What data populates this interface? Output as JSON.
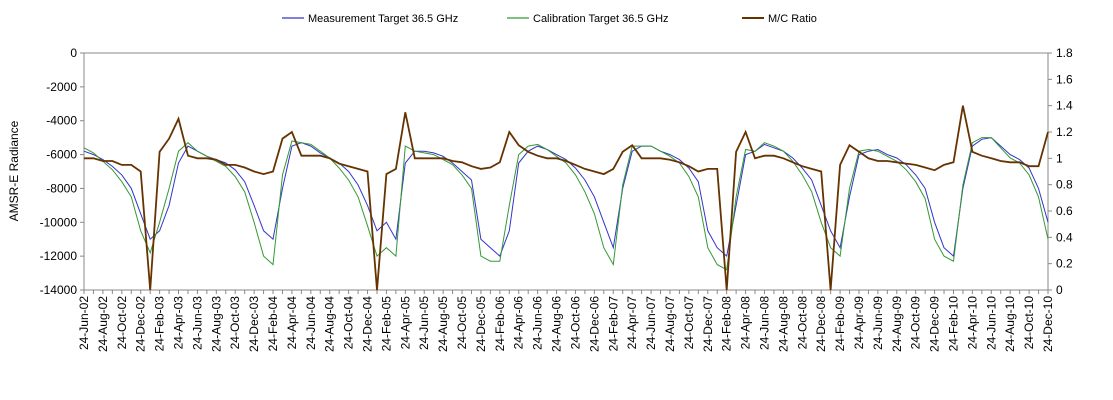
{
  "chart_data": {
    "type": "line",
    "ylabel": "AMSR-E Radiance",
    "categories": [
      "24-Jun-02",
      null,
      "24-Aug-02",
      null,
      "24-Oct-02",
      null,
      "24-Dec-02",
      null,
      "24-Feb-03",
      null,
      "24-Apr-03",
      null,
      "24-Jun-03",
      null,
      "24-Aug-03",
      null,
      "24-Oct-03",
      null,
      "24-Dec-03",
      null,
      "24-Feb-04",
      null,
      "24-Apr-04",
      null,
      "24-Jun-04",
      null,
      "24-Aug-04",
      null,
      "24-Oct-04",
      null,
      "24-Dec-04",
      null,
      "24-Feb-05",
      null,
      "24-Apr-05",
      null,
      "24-Jun-05",
      null,
      "24-Aug-05",
      null,
      "24-Oct-05",
      null,
      "24-Dec-05",
      null,
      "24-Feb-06",
      null,
      "24-Apr-06",
      null,
      "24-Jun-06",
      null,
      "24-Aug-06",
      null,
      "24-Oct-06",
      null,
      "24-Dec-06",
      null,
      "24-Feb-07",
      null,
      "24-Apr-07",
      null,
      "24-Jun-07",
      null,
      "24-Aug-07",
      null,
      "24-Oct-07",
      null,
      "24-Dec-07",
      null,
      "24-Feb-08",
      null,
      "24-Apr-08",
      null,
      "24-Jun-08",
      null,
      "24-Aug-08",
      null,
      "24-Oct-08",
      null,
      "24-Dec-08",
      null,
      "24-Feb-09",
      null,
      "24-Apr-09",
      null,
      "24-Jun-09",
      null,
      "24-Aug-09",
      null,
      "24-Oct-09",
      null,
      "24-Dec-09",
      null,
      "24-Feb-10",
      null,
      "24-Apr-10",
      null,
      "24-Jun-10",
      null,
      "24-Aug-10",
      null,
      "24-Oct-10",
      null,
      "24-Dec-10"
    ],
    "series": [
      {
        "name": "Measurement Target 36.5 GHz",
        "color": "#3333cc",
        "values": [
          -5800,
          -6000,
          -6300,
          -6700,
          -7200,
          -8000,
          -9500,
          -11000,
          -10500,
          -9000,
          -6500,
          -5500,
          -5800,
          -6100,
          -6300,
          -6500,
          -6900,
          -7600,
          -9000,
          -10500,
          -11000,
          -8000,
          -5500,
          -5300,
          -5500,
          -5900,
          -6200,
          -6500,
          -7000,
          -7800,
          -9000,
          -10500,
          -10000,
          -11000,
          -6500,
          -5800,
          -5800,
          -5900,
          -6100,
          -6500,
          -7000,
          -7500,
          -11000,
          -11500,
          -12000,
          -10500,
          -6500,
          -5800,
          -5500,
          -5700,
          -6000,
          -6300,
          -6800,
          -7500,
          -8500,
          -10000,
          -11500,
          -8000,
          -5800,
          -5500,
          -5500,
          -5800,
          -6000,
          -6300,
          -6800,
          -7600,
          -10500,
          -11500,
          -12000,
          -9000,
          -6000,
          -5800,
          -5400,
          -5600,
          -5800,
          -6200,
          -6800,
          -7500,
          -9000,
          -10500,
          -11500,
          -8500,
          -6000,
          -5800,
          -5700,
          -6000,
          -6200,
          -6600,
          -7200,
          -8000,
          -10000,
          -11500,
          -12000,
          -8000,
          -5500,
          -5100,
          -5000,
          -5500,
          -6000,
          -6300,
          -6800,
          -8000,
          -10000
        ]
      },
      {
        "name": "Calibration Target 36.5 GHz",
        "color": "#339933",
        "values": [
          -5600,
          -5900,
          -6400,
          -6900,
          -7600,
          -8500,
          -10500,
          -11800,
          -10000,
          -8000,
          -5800,
          -5300,
          -5800,
          -6100,
          -6400,
          -6700,
          -7300,
          -8200,
          -10000,
          -12000,
          -12500,
          -7200,
          -5200,
          -5300,
          -5400,
          -5800,
          -6200,
          -6800,
          -7500,
          -8500,
          -10200,
          -12000,
          -11500,
          -12000,
          -5500,
          -5800,
          -5900,
          -6000,
          -6300,
          -6600,
          -7200,
          -8000,
          -12000,
          -12300,
          -12300,
          -9000,
          -6000,
          -5500,
          -5400,
          -5700,
          -6100,
          -6500,
          -7200,
          -8200,
          -9500,
          -11500,
          -12500,
          -7800,
          -5500,
          -5500,
          -5500,
          -5800,
          -6100,
          -6500,
          -7300,
          -8500,
          -11500,
          -12500,
          -12800,
          -8500,
          -5700,
          -5800,
          -5300,
          -5500,
          -5800,
          -6400,
          -7200,
          -8200,
          -10000,
          -11500,
          -12000,
          -8000,
          -5800,
          -5700,
          -5800,
          -6100,
          -6400,
          -6900,
          -7600,
          -8600,
          -11000,
          -12000,
          -12300,
          -7800,
          -5300,
          -5000,
          -5000,
          -5600,
          -6200,
          -6500,
          -7200,
          -8500,
          -11000
        ]
      },
      {
        "name": "M/C Ratio",
        "color": "#663300",
        "axis": "y2",
        "values": [
          1.0,
          1.0,
          0.98,
          0.98,
          0.95,
          0.95,
          0.9,
          0.0,
          1.05,
          1.15,
          1.3,
          1.02,
          1.0,
          1.0,
          0.99,
          0.95,
          0.95,
          0.93,
          0.9,
          0.88,
          0.9,
          1.15,
          1.2,
          1.02,
          1.02,
          1.02,
          1.0,
          0.96,
          0.94,
          0.92,
          0.9,
          0.0,
          0.88,
          0.92,
          1.35,
          1.0,
          1.0,
          1.0,
          1.0,
          0.98,
          0.97,
          0.94,
          0.92,
          0.93,
          0.97,
          1.2,
          1.1,
          1.05,
          1.02,
          1.0,
          1.0,
          0.98,
          0.95,
          0.92,
          0.9,
          0.88,
          0.92,
          1.05,
          1.1,
          1.0,
          1.0,
          1.0,
          0.99,
          0.97,
          0.94,
          0.9,
          0.92,
          0.92,
          0.0,
          1.05,
          1.2,
          1.0,
          1.02,
          1.02,
          1.0,
          0.97,
          0.94,
          0.92,
          0.9,
          0.0,
          0.95,
          1.1,
          1.05,
          1.0,
          0.98,
          0.98,
          0.97,
          0.96,
          0.95,
          0.93,
          0.91,
          0.95,
          0.97,
          1.4,
          1.05,
          1.02,
          1.0,
          0.98,
          0.97,
          0.97,
          0.94,
          0.94,
          1.2
        ]
      }
    ],
    "ylim": [
      -14000,
      0
    ],
    "yticks": [
      0,
      -2000,
      -4000,
      -6000,
      -8000,
      -10000,
      -12000,
      -14000
    ],
    "y2lim": [
      0,
      1.8
    ],
    "y2ticks": [
      0,
      0.2,
      0.4,
      0.6,
      0.8,
      1,
      1.2,
      1.4,
      1.6,
      1.8
    ],
    "legend": "top"
  }
}
